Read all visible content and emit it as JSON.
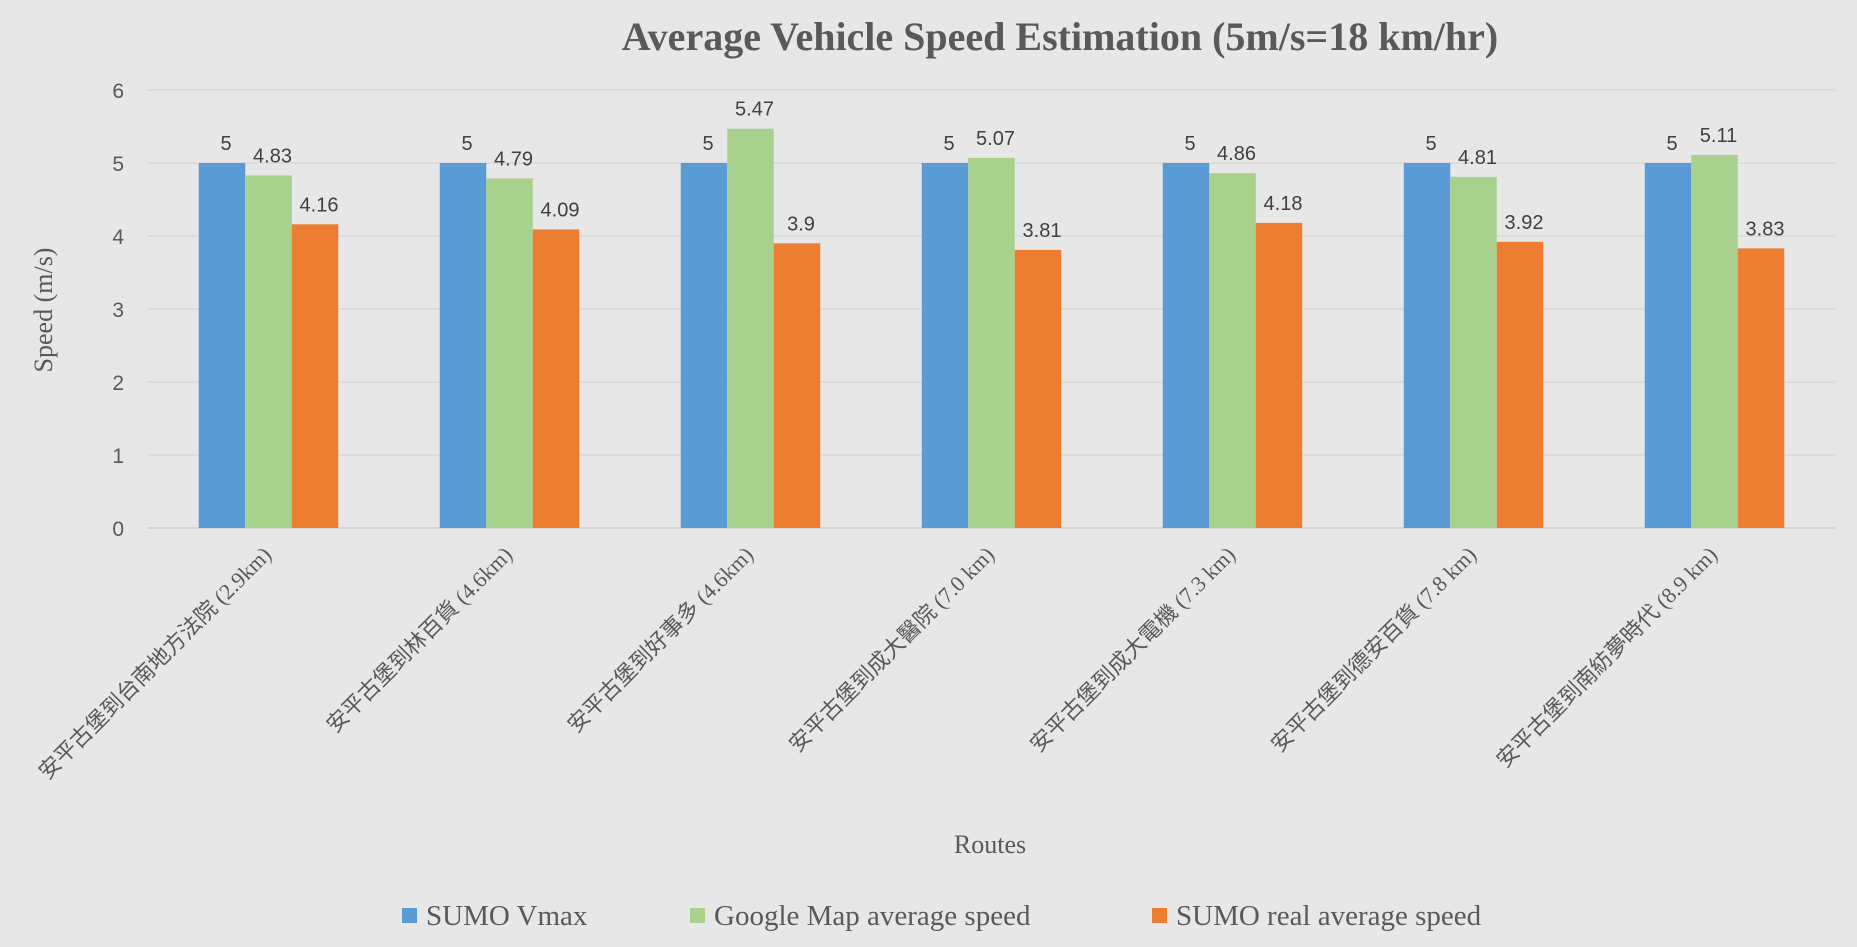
{
  "chart_data": {
    "type": "bar",
    "title": "Average Vehicle Speed Estimation (5m/s=18 km/hr)",
    "xlabel": "Routes",
    "ylabel": "Speed (m/s)",
    "ylim": [
      0,
      6
    ],
    "yticks": [
      "0",
      "1",
      "2",
      "3",
      "4",
      "5",
      "6"
    ],
    "grid": true,
    "legend_position": "bottom",
    "categories": [
      "安平古堡到台南地方法院 (2.9km)",
      "安平古堡到林百貨 (4.6km)",
      "安平古堡到好事多 (4.6km)",
      "安平古堡到成大醫院 (7.0 km)",
      "安平古堡到成大電機 (7.3 km)",
      "安平古堡到德安百貨 (7.8 km)",
      "安平古堡到南紡夢時代 (8.9 km)"
    ],
    "series": [
      {
        "name": "SUMO Vmax",
        "color": "#5b9bd5",
        "values": [
          5,
          5,
          5,
          5,
          5,
          5,
          5
        ],
        "labels": [
          "5",
          "5",
          "5",
          "5",
          "5",
          "5",
          "5"
        ]
      },
      {
        "name": "Google Map average speed",
        "color": "#a9d18e",
        "values": [
          4.83,
          4.79,
          5.47,
          5.07,
          4.86,
          4.81,
          5.11
        ],
        "labels": [
          "4.83",
          "4.79",
          "5.47",
          "5.07",
          "4.86",
          "4.81",
          "5.11"
        ]
      },
      {
        "name": "SUMO real average speed",
        "color": "#ed7d31",
        "values": [
          4.16,
          4.09,
          3.9,
          3.81,
          4.18,
          3.92,
          3.83
        ],
        "labels": [
          "4.16",
          "4.09",
          "3.9",
          "3.81",
          "4.18",
          "3.92",
          "3.83"
        ]
      }
    ]
  }
}
